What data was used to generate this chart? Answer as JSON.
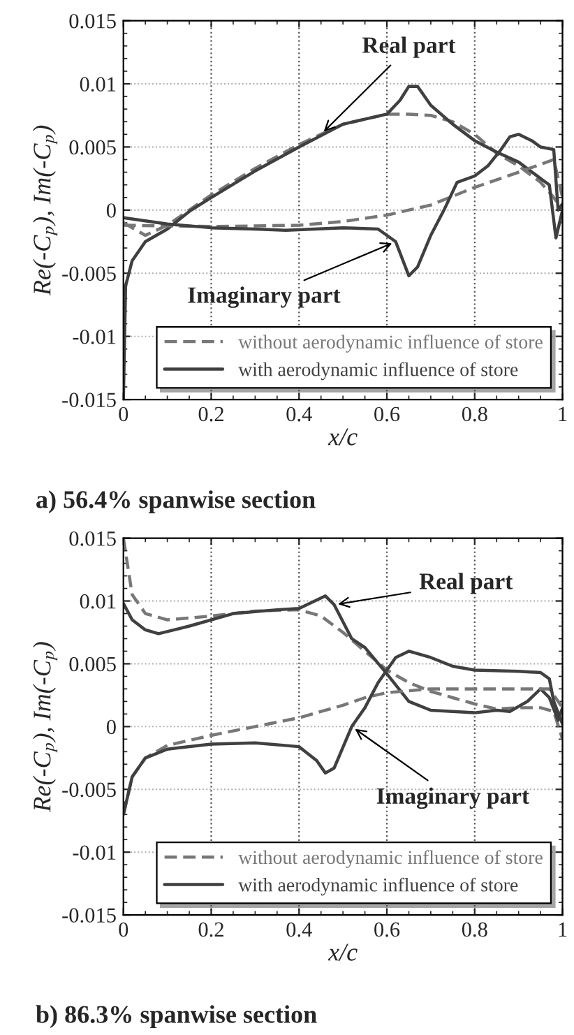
{
  "chart_data": [
    {
      "type": "line",
      "title": "a) 56.4% spanwise section",
      "xlabel": "x/c",
      "ylabel": "Re(-C$_{p}$), Im(-C$_{p}$)",
      "xlim": [
        0,
        1
      ],
      "ylim": [
        -0.015,
        0.015
      ],
      "xticks": [
        0,
        0.2,
        0.4,
        0.6,
        0.8,
        1
      ],
      "yticks": [
        {
          "value": -0.015,
          "label": "-0.015"
        },
        {
          "value": -0.01,
          "label": "-0.01"
        },
        {
          "value": -0.005,
          "label": "-0.005"
        },
        0,
        0.005,
        0.01,
        0.015
      ],
      "grid": true,
      "legend": "bottom right",
      "marker": "none",
      "series": [
        {
          "name": "without aerodynamic influence of store",
          "color": "#777777",
          "line_style": "dashed",
          "x": [
            0,
            0.05,
            0.1,
            0.15,
            0.2,
            0.3,
            0.4,
            0.5,
            0.6,
            0.65,
            0.7,
            0.75,
            0.8,
            0.85,
            0.9,
            0.95,
            0.98,
            1.0
          ],
          "values": [
            -0.001,
            -0.002,
            -0.0012,
            0.0,
            0.0012,
            0.0033,
            0.0052,
            0.0068,
            0.0076,
            0.0076,
            0.0075,
            0.007,
            0.006,
            0.0045,
            0.0035,
            0.0022,
            0.001,
            0.0
          ]
        },
        {
          "name": "with aerodynamic influence of store",
          "color": "#404040",
          "line_style": "solid",
          "x": [
            0,
            0.005,
            0.02,
            0.05,
            0.1,
            0.15,
            0.2,
            0.3,
            0.4,
            0.5,
            0.55,
            0.6,
            0.63,
            0.65,
            0.67,
            0.7,
            0.75,
            0.8,
            0.85,
            0.9,
            0.95,
            0.97,
            0.985,
            1.0
          ],
          "values": [
            -0.015,
            -0.006,
            -0.004,
            -0.0025,
            -0.0015,
            -0.0001,
            0.001,
            0.0031,
            0.005,
            0.0068,
            0.0072,
            0.0076,
            0.0087,
            0.0098,
            0.0098,
            0.0083,
            0.0068,
            0.0055,
            0.0046,
            0.0038,
            0.0025,
            0.002,
            -0.0022,
            0.0
          ]
        },
        {
          "color": "#777777",
          "line_style": "dashed",
          "x": [
            0,
            0.2,
            0.4,
            0.5,
            0.6,
            0.7,
            0.8,
            0.9,
            0.98,
            1.0
          ],
          "values": [
            -0.0012,
            -0.0013,
            -0.0012,
            -0.0009,
            -0.0004,
            0.0004,
            0.0018,
            0.003,
            0.004,
            0.001
          ]
        },
        {
          "color": "#404040",
          "line_style": "solid",
          "x": [
            0,
            0.1,
            0.2,
            0.3,
            0.37,
            0.5,
            0.58,
            0.62,
            0.65,
            0.67,
            0.7,
            0.73,
            0.76,
            0.8,
            0.83,
            0.86,
            0.88,
            0.9,
            0.93,
            0.95,
            0.98,
            0.99,
            1.0
          ],
          "values": [
            -0.0006,
            -0.0011,
            -0.0014,
            -0.0015,
            -0.0016,
            -0.0014,
            -0.0015,
            -0.0025,
            -0.0052,
            -0.0045,
            -0.002,
            0.0,
            0.0022,
            0.0027,
            0.0035,
            0.0048,
            0.0058,
            0.006,
            0.0055,
            0.005,
            0.0048,
            0.0,
            0.0005
          ]
        }
      ],
      "annotations": [
        {
          "text": "Real part",
          "x": 0.45,
          "y": 0.006
        },
        {
          "text": "Imaginary part",
          "x": 0.62,
          "y": -0.0025
        }
      ]
    },
    {
      "type": "line",
      "title": "b) 86.3% spanwise section",
      "xlabel": "x/c",
      "ylabel": "Re(-C$_{p}$), Im(-C$_{p}$)",
      "xlim": [
        0,
        1
      ],
      "ylim": [
        -0.015,
        0.015
      ],
      "xticks": [
        0,
        0.2,
        0.4,
        0.6,
        0.8,
        1
      ],
      "yticks": [
        {
          "value": -0.015,
          "label": "-0.015"
        },
        {
          "value": -0.01,
          "label": "-0.01"
        },
        {
          "value": -0.005,
          "label": "-0.005"
        },
        0,
        0.005,
        0.01,
        0.015
      ],
      "grid": true,
      "legend": "bottom right",
      "marker": "none",
      "series": [
        {
          "name": "without aerodynamic influence of store",
          "color": "#777777",
          "line_style": "dashed",
          "x": [
            0,
            0.02,
            0.05,
            0.1,
            0.2,
            0.3,
            0.4,
            0.45,
            0.5,
            0.55,
            0.6,
            0.65,
            0.7,
            0.75,
            0.8,
            0.85,
            0.9,
            0.95,
            0.98,
            1.0
          ],
          "values": [
            0.015,
            0.0105,
            0.009,
            0.0085,
            0.0088,
            0.0092,
            0.0093,
            0.0088,
            0.0075,
            0.006,
            0.0045,
            0.0035,
            0.0028,
            0.0023,
            0.0018,
            0.0014,
            0.0015,
            0.0015,
            0.0012,
            -0.001
          ]
        },
        {
          "name": "with aerodynamic influence of store",
          "color": "#404040",
          "line_style": "solid",
          "x": [
            0,
            0.02,
            0.05,
            0.08,
            0.15,
            0.25,
            0.35,
            0.4,
            0.43,
            0.46,
            0.48,
            0.52,
            0.55,
            0.6,
            0.65,
            0.7,
            0.8,
            0.85,
            0.88,
            0.92,
            0.95,
            0.97,
            0.99,
            1.0
          ],
          "values": [
            0.0098,
            0.0085,
            0.0077,
            0.0074,
            0.008,
            0.009,
            0.0093,
            0.0094,
            0.0099,
            0.0104,
            0.0097,
            0.007,
            0.0063,
            0.0042,
            0.002,
            0.0013,
            0.0011,
            0.0013,
            0.0012,
            0.002,
            0.003,
            0.0023,
            0.0005,
            0.0015
          ]
        },
        {
          "color": "#777777",
          "line_style": "dashed",
          "x": [
            0,
            0.02,
            0.05,
            0.1,
            0.2,
            0.3,
            0.4,
            0.5,
            0.55,
            0.6,
            0.7,
            0.8,
            0.9,
            0.97,
            1.0
          ],
          "values": [
            -0.007,
            -0.004,
            -0.0025,
            -0.0015,
            -0.0007,
            0.0,
            0.0007,
            0.0017,
            0.0023,
            0.0027,
            0.003,
            0.003,
            0.003,
            0.003,
            0.0015
          ]
        },
        {
          "color": "#404040",
          "line_style": "solid",
          "x": [
            0,
            0.02,
            0.05,
            0.1,
            0.2,
            0.3,
            0.4,
            0.44,
            0.46,
            0.48,
            0.52,
            0.55,
            0.58,
            0.62,
            0.65,
            0.7,
            0.75,
            0.8,
            0.9,
            0.95,
            0.97,
            0.98,
            1.0
          ],
          "values": [
            -0.007,
            -0.004,
            -0.0025,
            -0.0018,
            -0.0014,
            -0.0013,
            -0.0016,
            -0.0027,
            -0.0037,
            -0.0033,
            0.0,
            0.0015,
            0.0035,
            0.0055,
            0.006,
            0.0055,
            0.0048,
            0.0045,
            0.0044,
            0.0043,
            0.0038,
            0.002,
            0.0002
          ]
        }
      ],
      "annotations": [
        {
          "text": "Real part",
          "x": 0.48,
          "y": 0.0097
        },
        {
          "text": "Imaginary part",
          "x": 0.52,
          "y": 0.0
        }
      ]
    }
  ]
}
